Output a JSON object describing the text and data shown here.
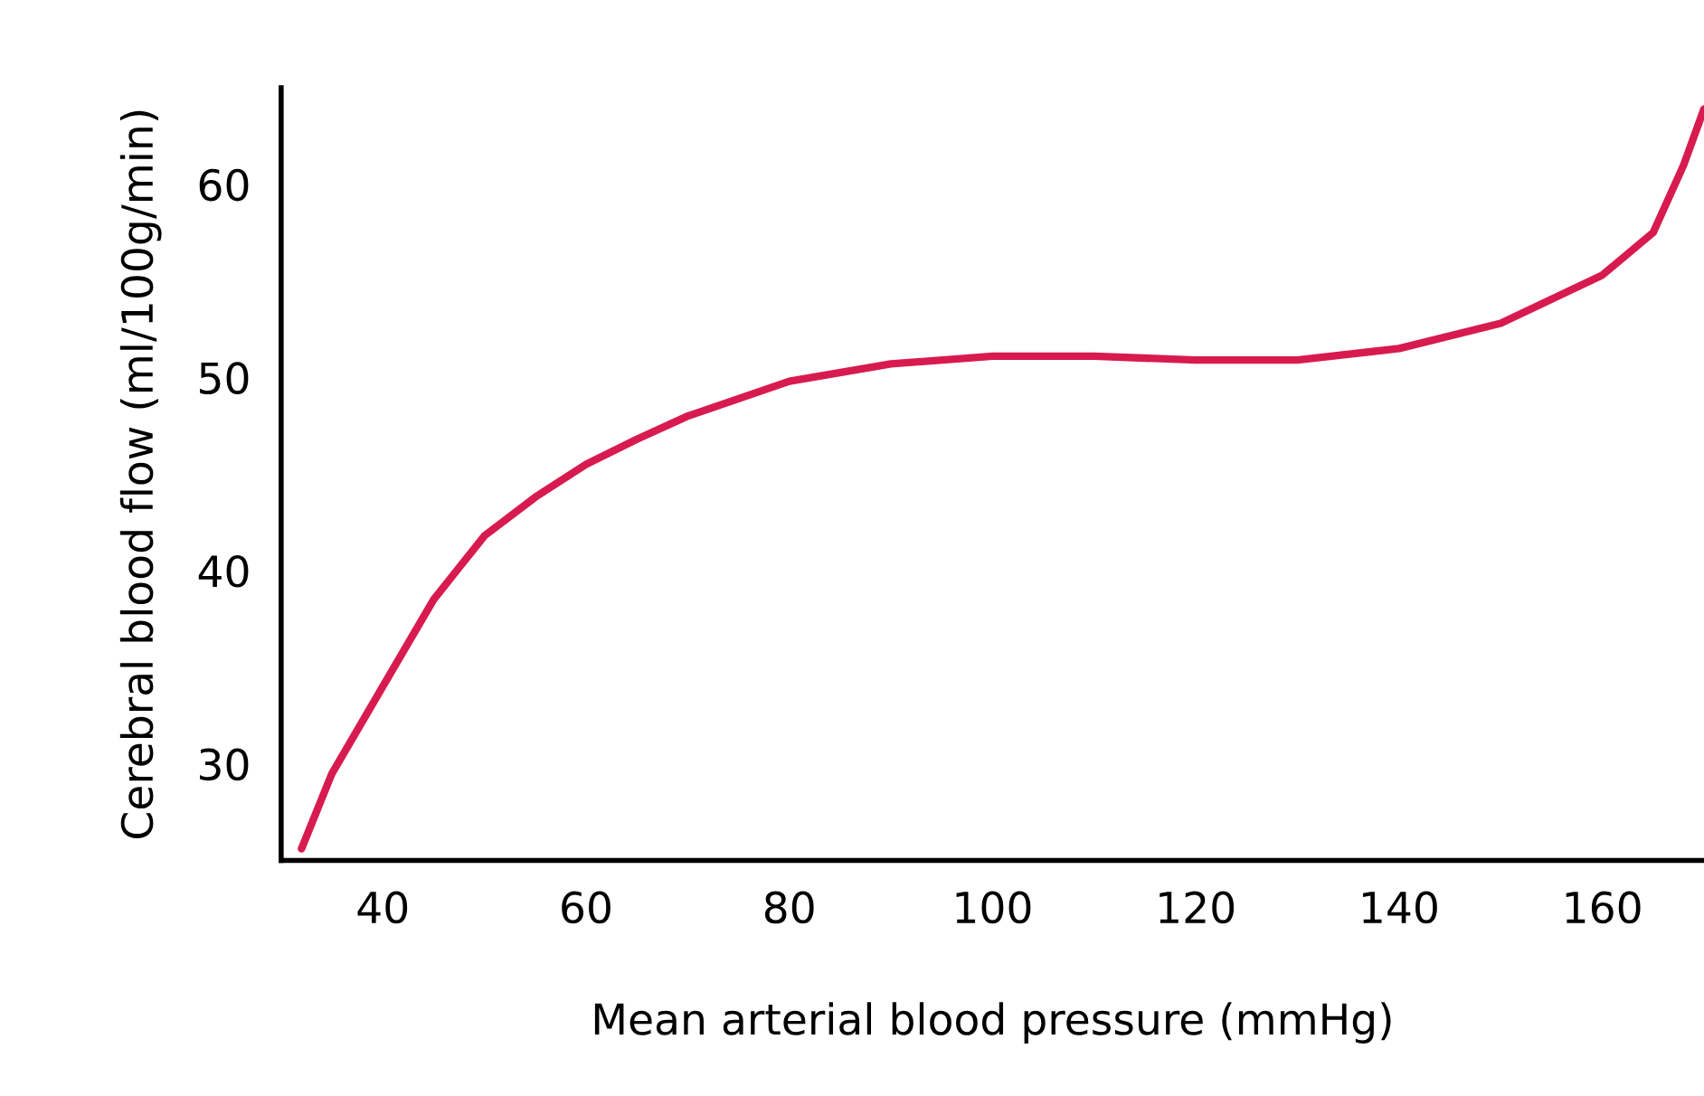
{
  "chart_data": {
    "type": "line",
    "xlabel": "Mean arterial blood pressure (mmHg)",
    "ylabel": "Cerebral blood flow (ml/100g/min)",
    "series": [
      {
        "color": "#d81b4f",
        "x": [
          32,
          35,
          40,
          45,
          50,
          55,
          60,
          65,
          70,
          80,
          90,
          100,
          110,
          120,
          130,
          140,
          150,
          160,
          165,
          168,
          170
        ],
        "values": [
          25.6,
          29.5,
          34,
          38.5,
          41.8,
          43.8,
          45.5,
          46.8,
          48,
          49.8,
          50.7,
          51.1,
          51.1,
          50.9,
          50.9,
          51.5,
          52.8,
          55.3,
          57.5,
          61,
          63.9
        ]
      }
    ],
    "xlim": [
      30,
      170
    ],
    "ylim": [
      25,
      65
    ],
    "xticks": [
      40,
      60,
      80,
      100,
      120,
      140,
      160
    ],
    "yticks": [
      30,
      40,
      50,
      60
    ],
    "grid": false,
    "legend": false,
    "marker": "none",
    "line_style": "solid"
  }
}
